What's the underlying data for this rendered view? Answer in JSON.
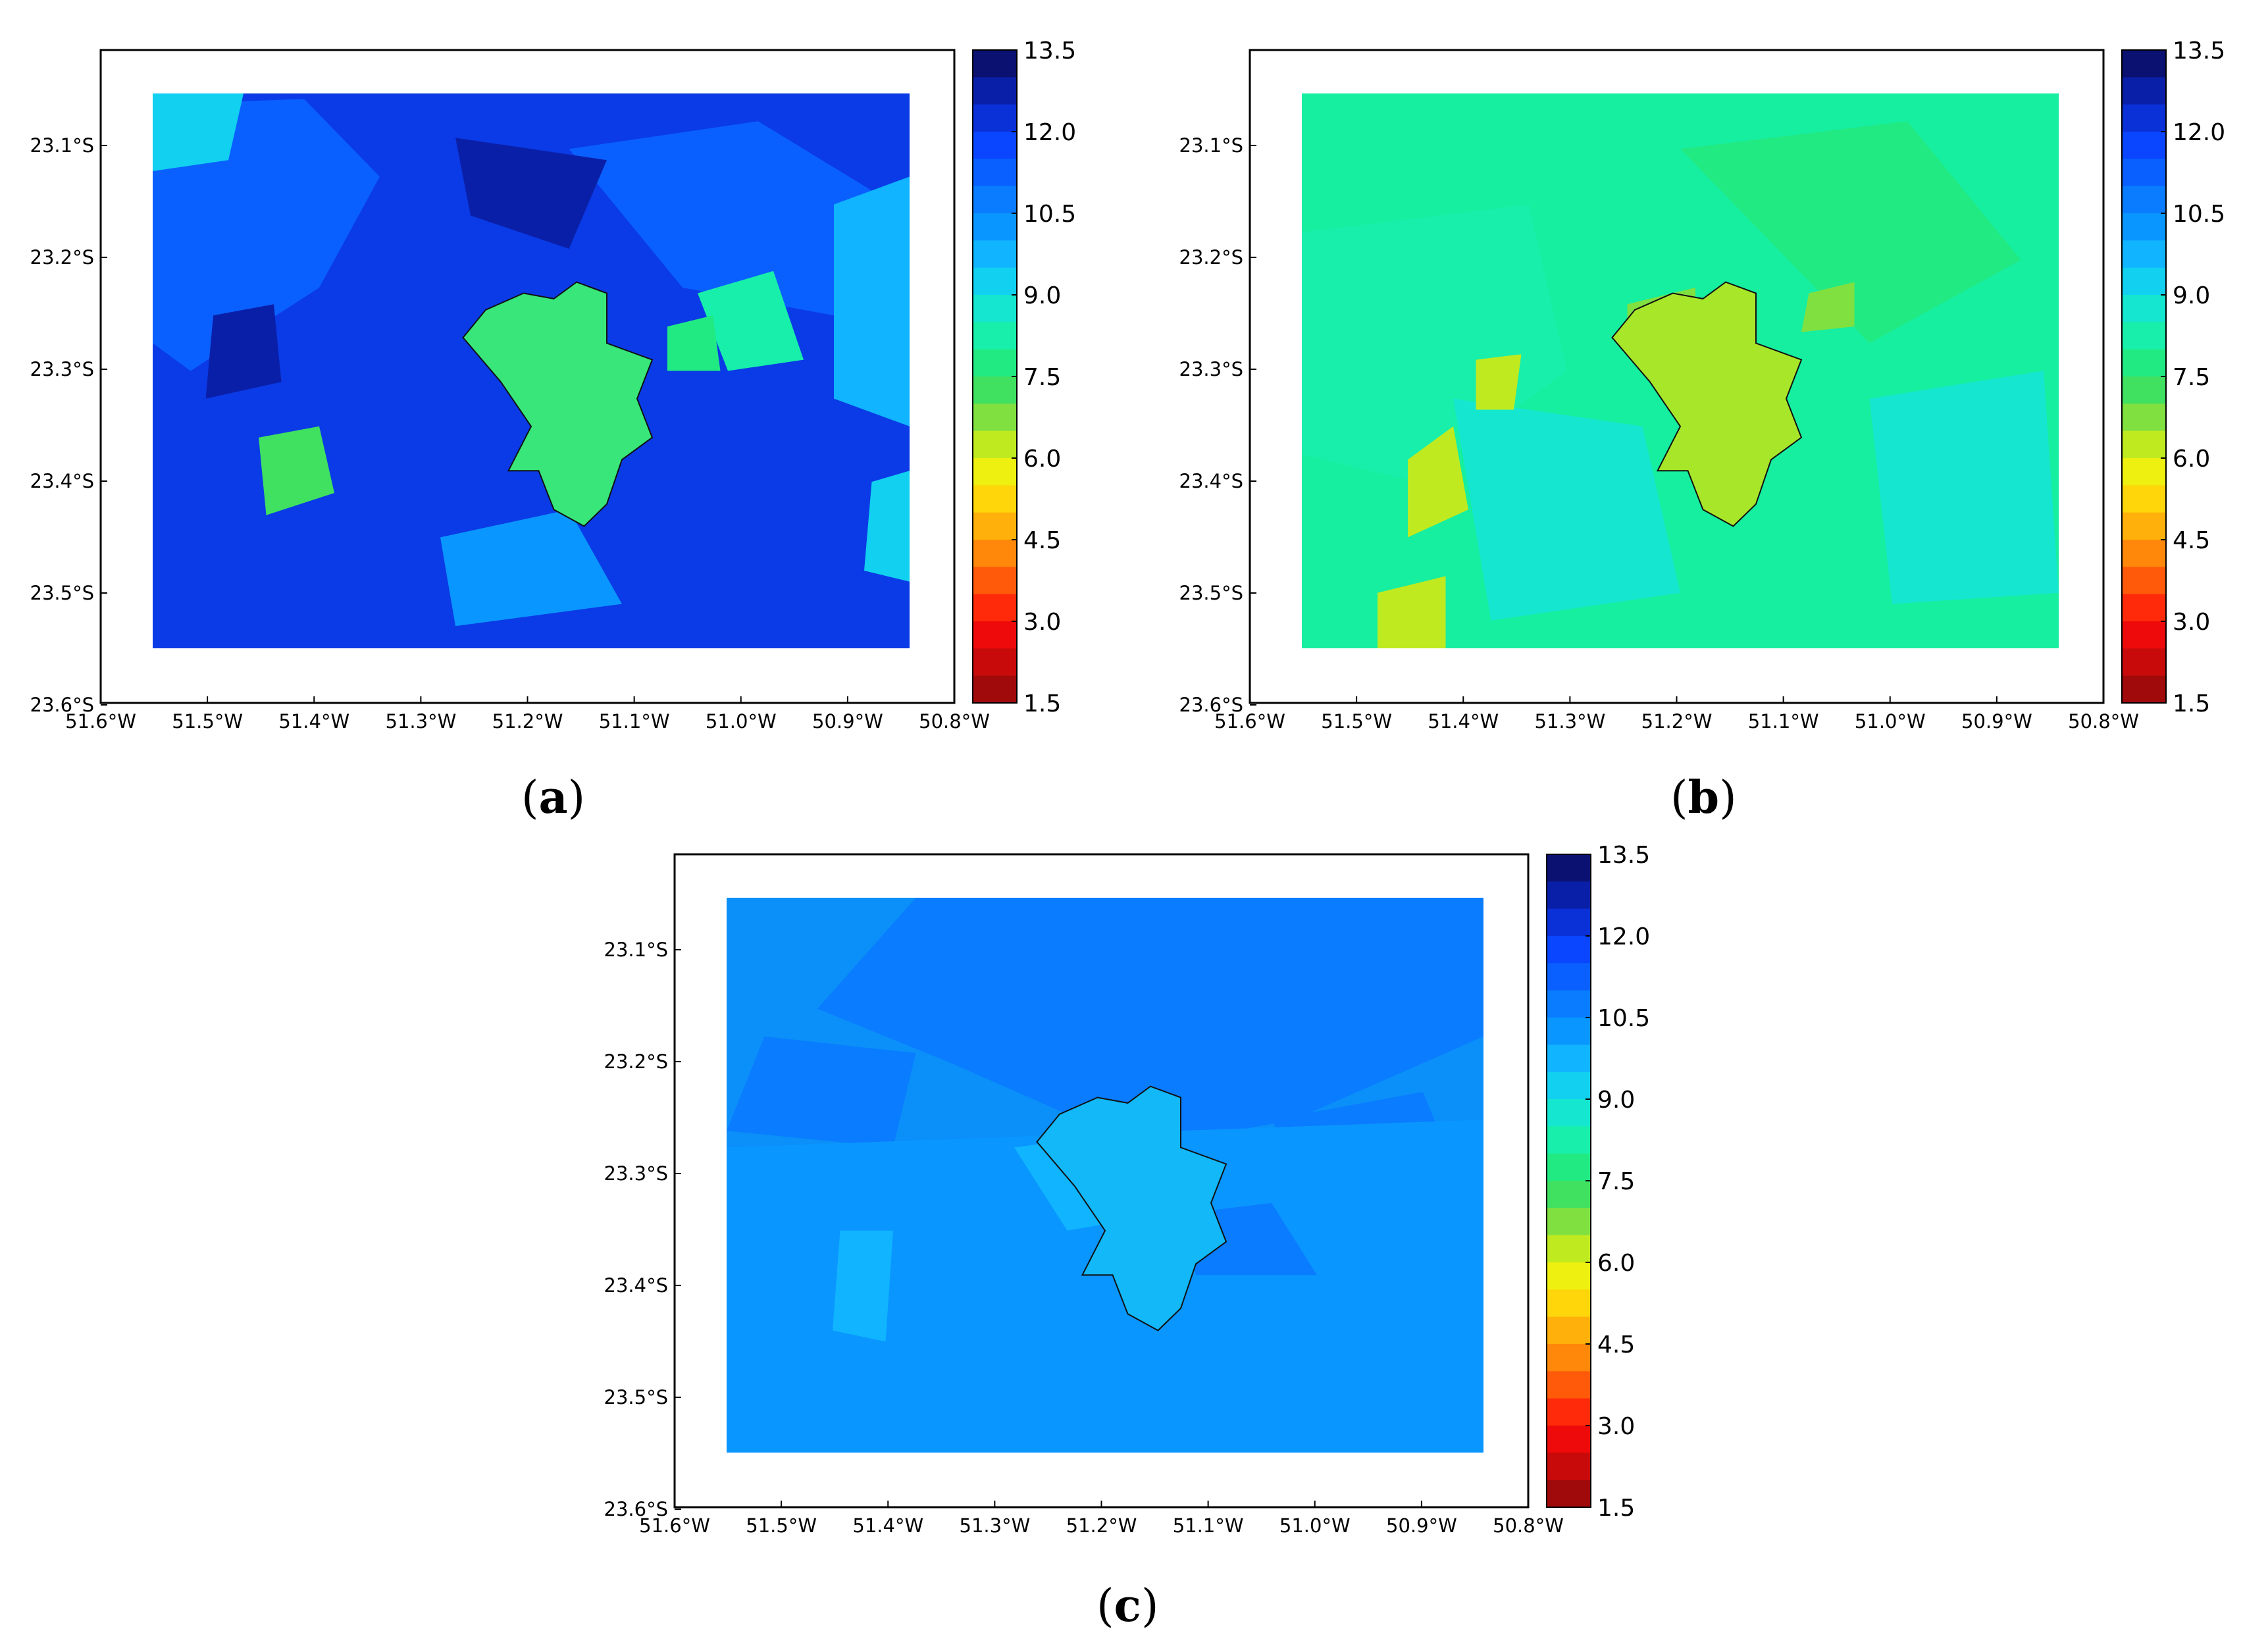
{
  "figure": {
    "panels": [
      {
        "caption_open": "(",
        "caption_letter": "a",
        "caption_close": ")",
        "base_color": "#0a3be6",
        "city_color": "#38e67a",
        "theme": "a"
      },
      {
        "caption_open": "(",
        "caption_letter": "b",
        "caption_close": ")",
        "base_color": "#16eea0",
        "city_color": "#a8e62a",
        "theme": "b"
      },
      {
        "caption_open": "(",
        "caption_letter": "c",
        "caption_close": ")",
        "base_color": "#0a90f8",
        "city_color": "#12b8f8",
        "theme": "c"
      }
    ]
  },
  "axes": {
    "lat_ticks": [
      "23.1°S",
      "23.2°S",
      "23.3°S",
      "23.4°S",
      "23.5°S",
      "23.6°S"
    ],
    "lon_ticks": [
      "51.6°W",
      "51.5°W",
      "51.4°W",
      "51.3°W",
      "51.2°W",
      "51.1°W",
      "51.0°W",
      "50.9°W",
      "50.8°W"
    ]
  },
  "colorbar": {
    "tick_labels": [
      "13.5",
      "12.0",
      "10.5",
      "9.0",
      "7.5",
      "6.0",
      "4.5",
      "3.0",
      "1.5"
    ],
    "min": 1.5,
    "max": 13.5,
    "colors": [
      "#0a1170",
      "#0a1fa8",
      "#0a30d8",
      "#0a45ff",
      "#0a60ff",
      "#0a7cff",
      "#0a96ff",
      "#10b4ff",
      "#12d0f0",
      "#14e6d0",
      "#18efaa",
      "#22ea82",
      "#40e060",
      "#80e040",
      "#c0ea20",
      "#eef010",
      "#ffd60a",
      "#ffb00a",
      "#ff880a",
      "#ff5a0a",
      "#ff2a0a",
      "#ee0a0a",
      "#c80a0a",
      "#a00a0a"
    ]
  }
}
